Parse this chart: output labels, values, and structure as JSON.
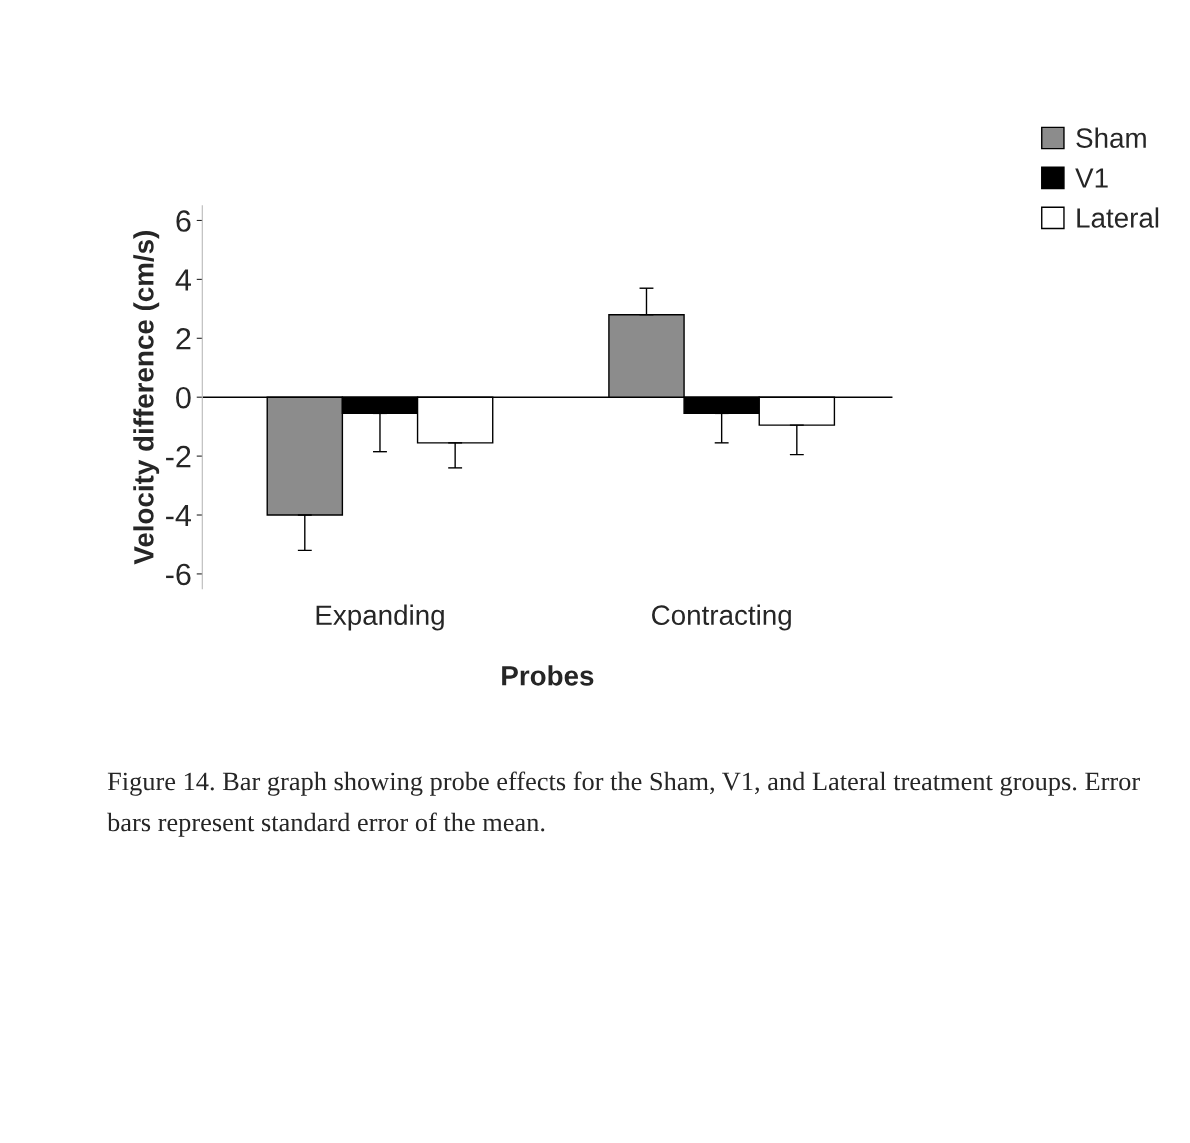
{
  "chart_data": {
    "type": "bar",
    "xlabel": "Probes",
    "ylabel": "Velocity difference (cm/s)",
    "categories": [
      "Expanding",
      "Contracting"
    ],
    "series": [
      {
        "name": "Sham",
        "color": "#8c8c8c",
        "values": [
          -4.0,
          2.8
        ],
        "errors": [
          [
            -5.2,
            -4.0
          ],
          [
            2.8,
            3.7
          ]
        ]
      },
      {
        "name": "V1",
        "color": "#000000",
        "values": [
          -0.55,
          -0.55
        ],
        "errors": [
          [
            -1.85,
            -0.55
          ],
          [
            -1.55,
            -0.55
          ]
        ]
      },
      {
        "name": "Lateral",
        "color": "#ffffff",
        "values": [
          -1.55,
          -0.95
        ],
        "errors": [
          [
            -2.4,
            -1.55
          ],
          [
            -1.95,
            -0.95
          ]
        ]
      }
    ],
    "ylim": [
      -6.5,
      6.5
    ],
    "yticks": [
      -6,
      -4,
      -2,
      0,
      2,
      4,
      6
    ],
    "ref_lines": [
      {
        "axis": "y",
        "value": 0
      }
    ],
    "grid": false,
    "legend": "top right",
    "annotations": [
      "Figure 14. Bar graph showing probe effects for the Sham, V1, and Lateral treatment groups. Error bars represent standard error of the mean."
    ]
  }
}
